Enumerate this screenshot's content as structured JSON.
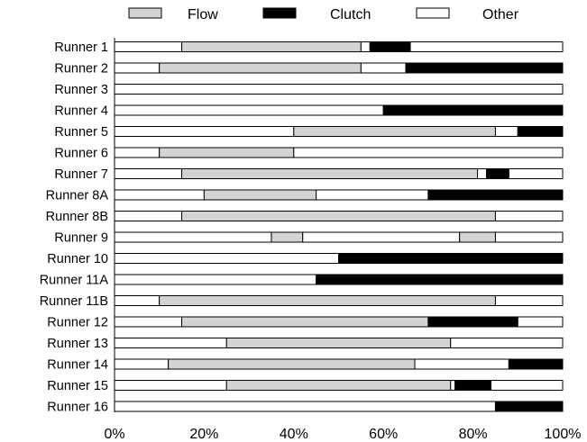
{
  "chart_data": {
    "type": "bar",
    "orientation": "horizontal",
    "stacked": true,
    "legend": {
      "position": "top",
      "entries": [
        {
          "label": "Flow",
          "color": "#d3d3d3"
        },
        {
          "label": "Clutch",
          "color": "#000000"
        },
        {
          "label": "Other",
          "color": "#ffffff"
        }
      ]
    },
    "categories": [
      "Runner 1",
      "Runner 2",
      "Runner 3",
      "Runner 4",
      "Runner 5",
      "Runner 6",
      "Runner 7",
      "Runner 8A",
      "Runner 8B",
      "Runner 9",
      "Runner 10",
      "Runner 11A",
      "Runner 11B",
      "Runner 12",
      "Runner 13",
      "Runner 14",
      "Runner 15",
      "Runner 16"
    ],
    "x_ticks": [
      "0%",
      "20%",
      "40%",
      "60%",
      "80%",
      "100%"
    ],
    "xlim": [
      0,
      100
    ],
    "grid": false,
    "segments": [
      [
        [
          "Other",
          15
        ],
        [
          "Flow",
          40
        ],
        [
          "Other",
          2
        ],
        [
          "Clutch",
          9
        ],
        [
          "Other",
          34
        ]
      ],
      [
        [
          "Other",
          10
        ],
        [
          "Flow",
          45
        ],
        [
          "Other",
          10
        ],
        [
          "Clutch",
          35
        ]
      ],
      [
        [
          "Other",
          100
        ]
      ],
      [
        [
          "Other",
          60
        ],
        [
          "Clutch",
          40
        ]
      ],
      [
        [
          "Other",
          40
        ],
        [
          "Flow",
          45
        ],
        [
          "Other",
          5
        ],
        [
          "Clutch",
          10
        ]
      ],
      [
        [
          "Other",
          10
        ],
        [
          "Flow",
          30
        ],
        [
          "Other",
          60
        ]
      ],
      [
        [
          "Other",
          15
        ],
        [
          "Flow",
          66
        ],
        [
          "Other",
          2
        ],
        [
          "Clutch",
          5
        ],
        [
          "Other",
          12
        ]
      ],
      [
        [
          "Other",
          20
        ],
        [
          "Flow",
          25
        ],
        [
          "Other",
          25
        ],
        [
          "Clutch",
          30
        ]
      ],
      [
        [
          "Other",
          15
        ],
        [
          "Flow",
          70
        ],
        [
          "Other",
          15
        ]
      ],
      [
        [
          "Other",
          35
        ],
        [
          "Flow",
          7
        ],
        [
          "Other",
          35
        ],
        [
          "Flow",
          8
        ],
        [
          "Other",
          15
        ]
      ],
      [
        [
          "Other",
          50
        ],
        [
          "Clutch",
          50
        ]
      ],
      [
        [
          "Other",
          45
        ],
        [
          "Clutch",
          55
        ]
      ],
      [
        [
          "Other",
          10
        ],
        [
          "Flow",
          75
        ],
        [
          "Other",
          15
        ]
      ],
      [
        [
          "Other",
          15
        ],
        [
          "Flow",
          55
        ],
        [
          "Clutch",
          20
        ],
        [
          "Other",
          10
        ]
      ],
      [
        [
          "Other",
          25
        ],
        [
          "Flow",
          50
        ],
        [
          "Other",
          25
        ]
      ],
      [
        [
          "Other",
          12
        ],
        [
          "Flow",
          55
        ],
        [
          "Other",
          21
        ],
        [
          "Clutch",
          12
        ]
      ],
      [
        [
          "Other",
          25
        ],
        [
          "Flow",
          50
        ],
        [
          "Other",
          1
        ],
        [
          "Clutch",
          8
        ],
        [
          "Other",
          16
        ]
      ],
      [
        [
          "Other",
          85
        ],
        [
          "Clutch",
          15
        ]
      ]
    ]
  }
}
